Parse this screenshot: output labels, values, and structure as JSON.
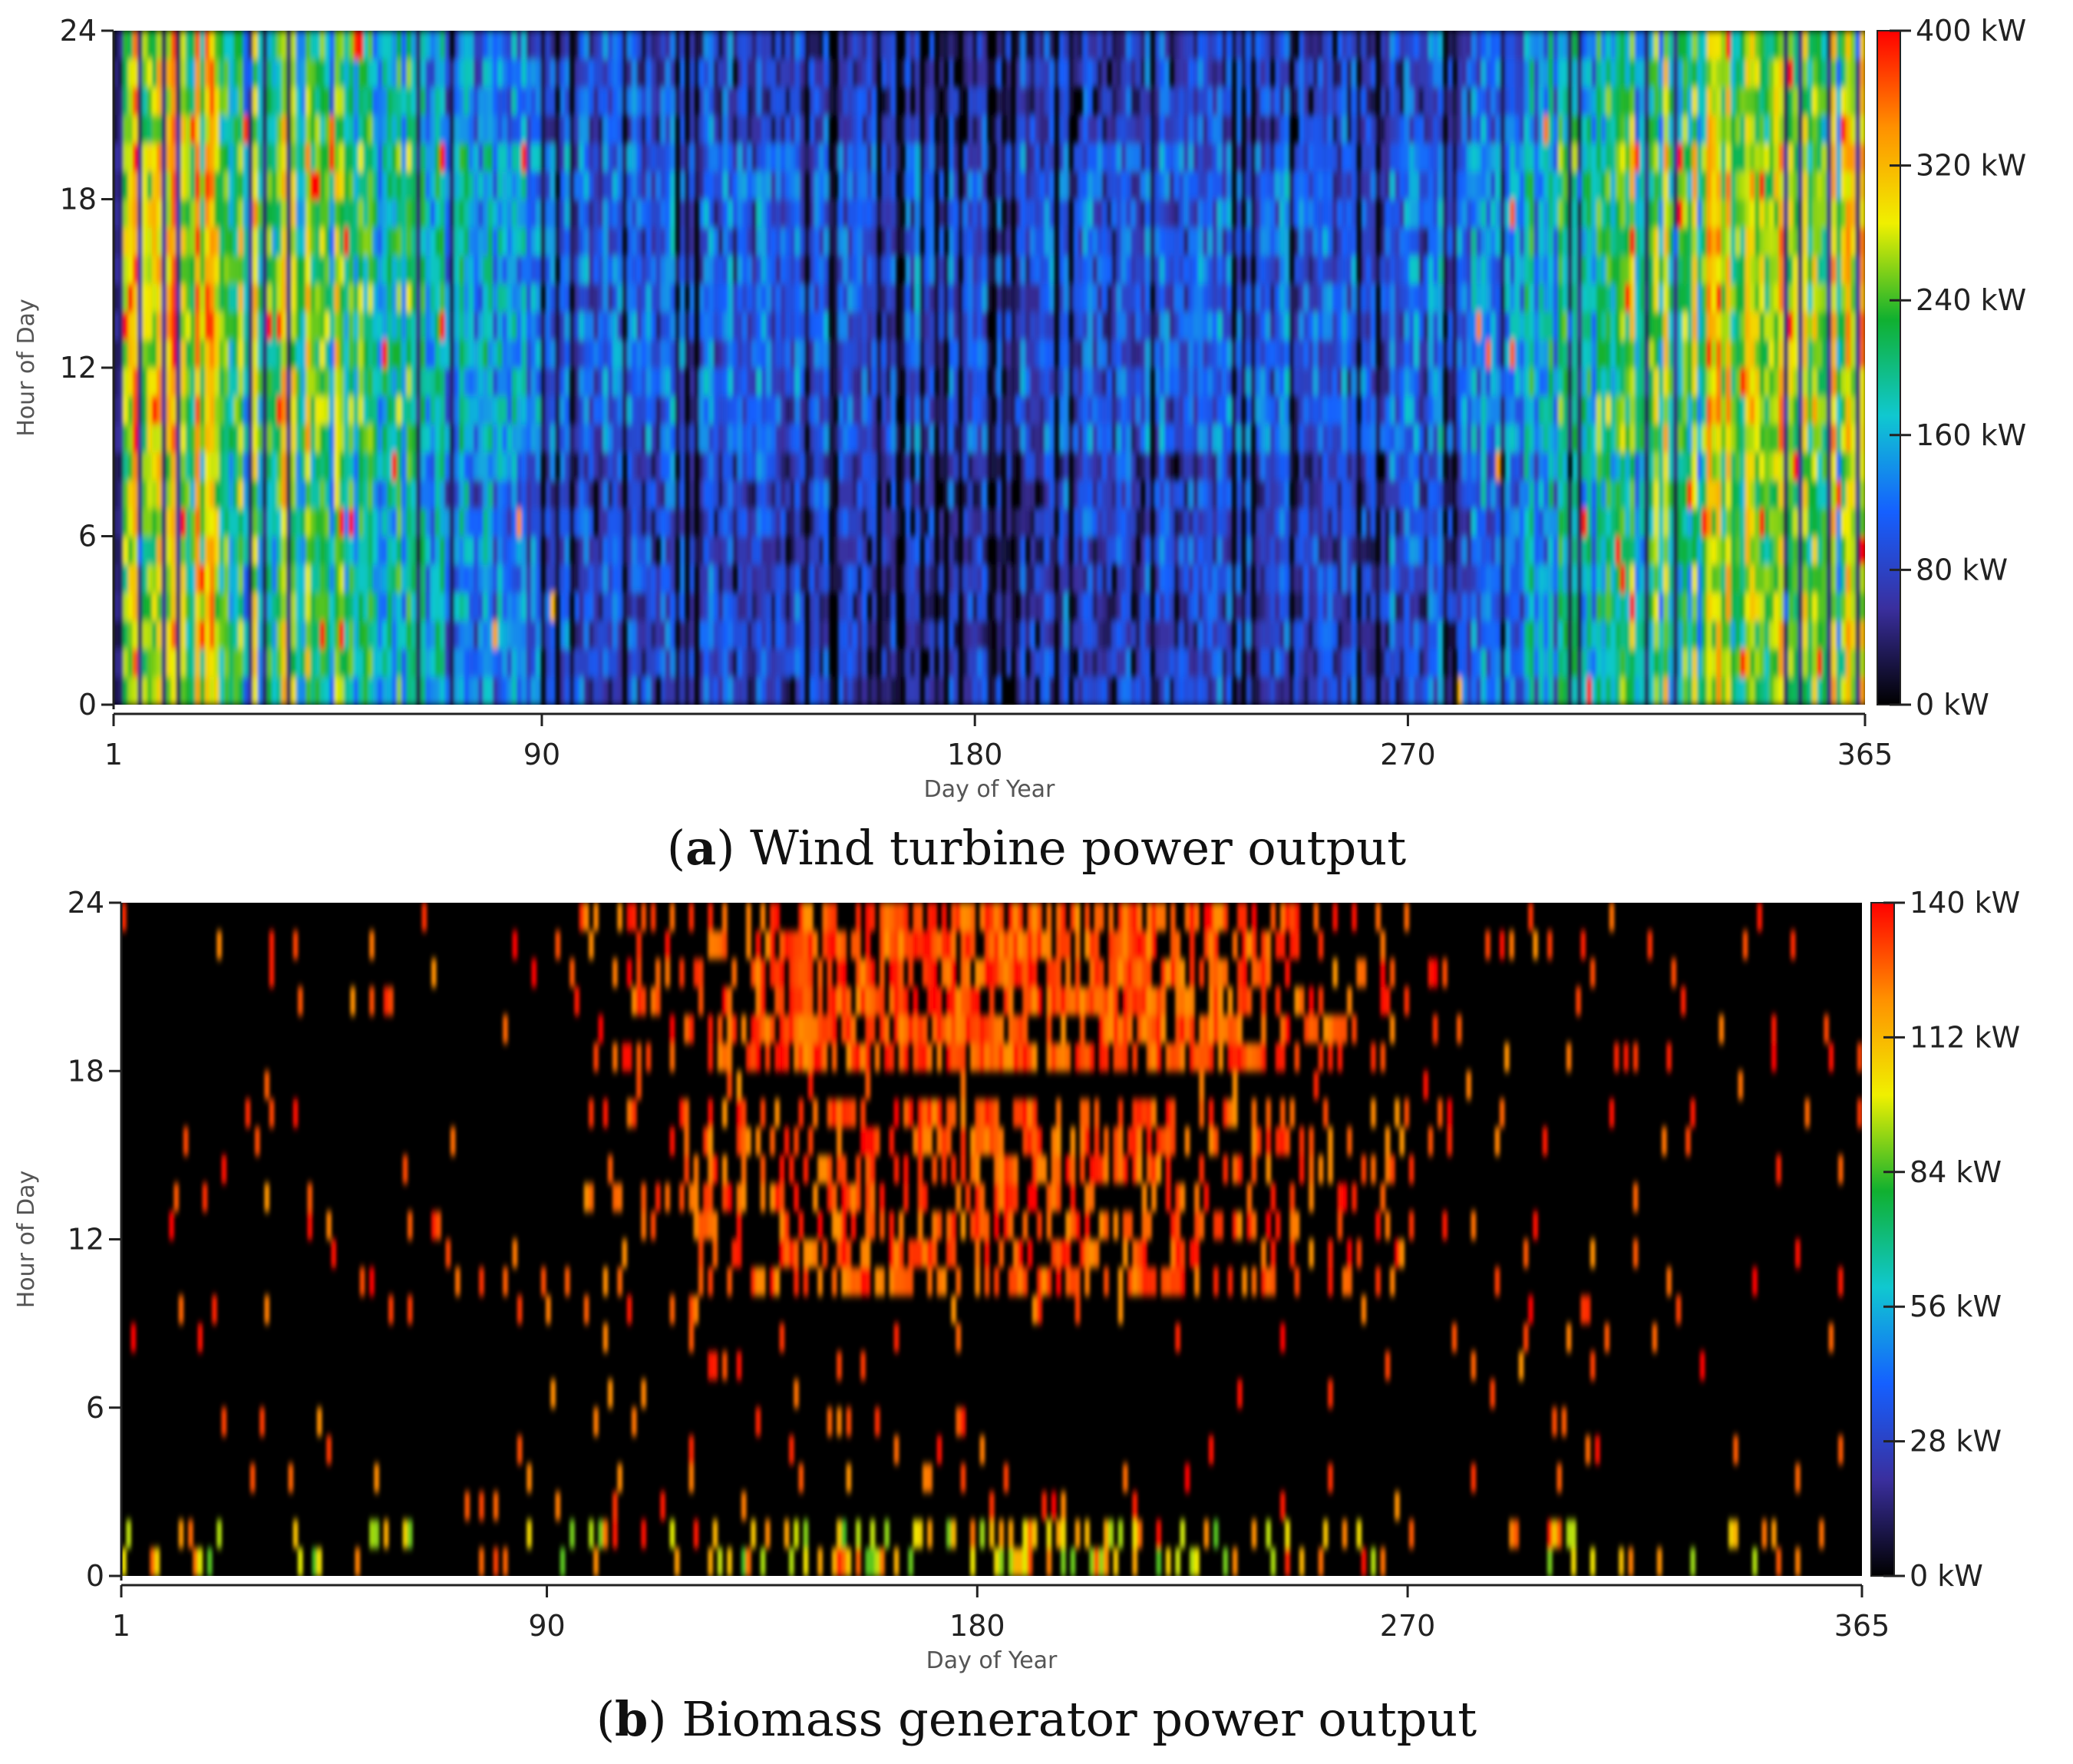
{
  "chart_data": [
    {
      "type": "heatmap",
      "caption_letter": "a",
      "caption_text": "Wind turbine power output",
      "xlabel": "Day of Year",
      "ylabel": "Hour of Day",
      "xlim": [
        1,
        365
      ],
      "ylim": [
        0,
        24
      ],
      "x_ticks": [
        1,
        90,
        180,
        270,
        365
      ],
      "y_ticks": [
        0,
        6,
        12,
        18,
        24
      ],
      "colorbar": {
        "min": 0,
        "max": 400,
        "ticks": [
          "0 kW",
          "80 kW",
          "160 kW",
          "240 kW",
          "320 kW",
          "400 kW"
        ],
        "tick_values": [
          0,
          80,
          160,
          240,
          320,
          400
        ],
        "colors": [
          "#000000",
          "#3a2f9e",
          "#1560ff",
          "#10c8d0",
          "#10b030",
          "#f0f000",
          "#ff9000",
          "#ff0000"
        ]
      },
      "pattern": "Higher output in winter months (days 1-110 and 290-365), mostly below 160 kW with sparse peaks near 400 kW; low output in summer (days 110-290)"
    },
    {
      "type": "heatmap",
      "caption_letter": "b",
      "caption_text": "Biomass generator power output",
      "xlabel": "Day of Year",
      "ylabel": "Hour of Day",
      "xlim": [
        1,
        365
      ],
      "ylim": [
        0,
        24
      ],
      "x_ticks": [
        1,
        90,
        180,
        270,
        365
      ],
      "y_ticks": [
        0,
        6,
        12,
        18,
        24
      ],
      "colorbar": {
        "min": 0,
        "max": 140,
        "ticks": [
          "0 kW",
          "28 kW",
          "56 kW",
          "84 kW",
          "112 kW",
          "140 kW"
        ],
        "tick_values": [
          0,
          28,
          56,
          84,
          112,
          140
        ],
        "colors": [
          "#000000",
          "#3a2f9e",
          "#1560ff",
          "#10c8d0",
          "#10b030",
          "#f0f000",
          "#ff9000",
          "#ff0000"
        ]
      },
      "pattern": "Generator runs near 140 kW mainly in the evening (hours 18-24) and midday (hours 10-16) during days 110-290; sparse short runs in other periods"
    }
  ]
}
